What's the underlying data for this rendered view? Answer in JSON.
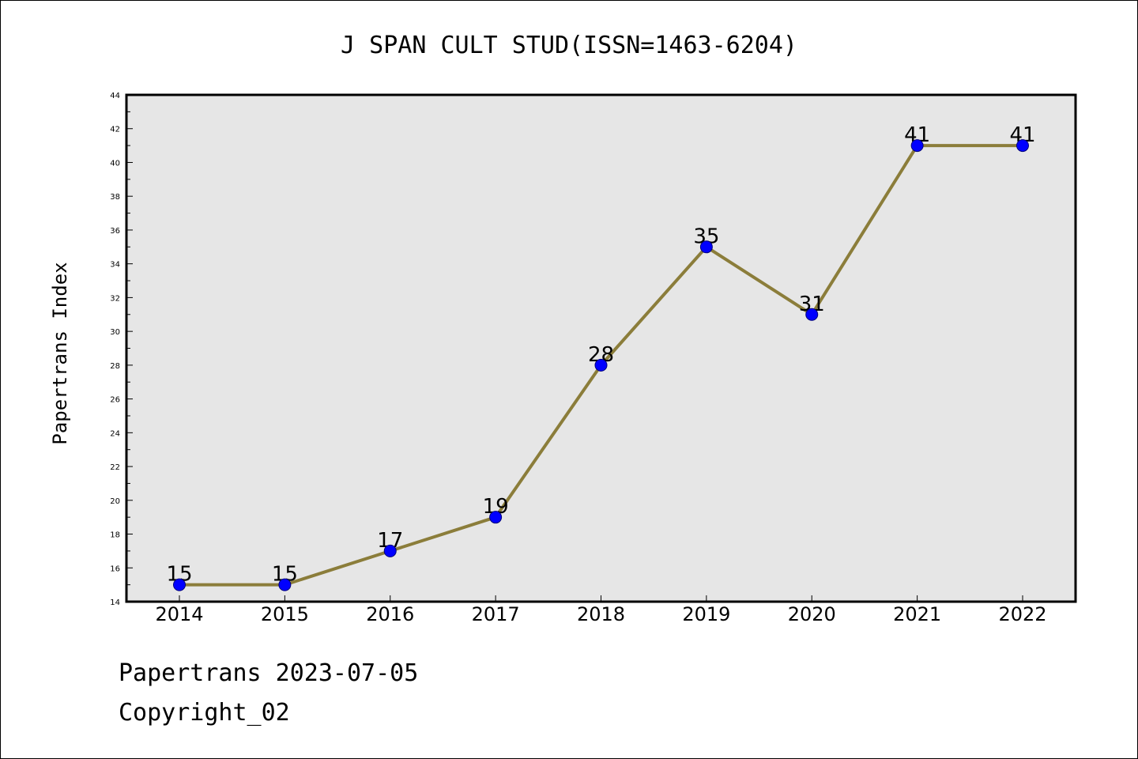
{
  "chart_data": {
    "type": "line",
    "title": "J SPAN CULT STUD(ISSN=1463-6204)",
    "xlabel": "",
    "ylabel": "Papertrans Index",
    "categories": [
      "2014",
      "2015",
      "2016",
      "2017",
      "2018",
      "2019",
      "2020",
      "2021",
      "2022"
    ],
    "series": [
      {
        "values": [
          15,
          15,
          17,
          19,
          28,
          35,
          31,
          41,
          41
        ]
      }
    ],
    "data_labels": [
      "15",
      "15",
      "17",
      "19",
      "28",
      "35",
      "31",
      "41",
      "41"
    ],
    "ylim": [
      14,
      44
    ],
    "yticks": [
      "14",
      "16",
      "18",
      "20",
      "22",
      "24",
      "26",
      "28",
      "30",
      "32",
      "34",
      "36",
      "38",
      "40",
      "42",
      "44"
    ],
    "grid": false,
    "legend": "none",
    "colors": {
      "line": "#8b7d3a",
      "marker_fill": "#0000ff",
      "marker_edge": "#00007a",
      "plot_background": "#e6e6e6"
    }
  },
  "footer": {
    "line1": "Papertrans 2023-07-05",
    "line2": "Copyright_02"
  }
}
